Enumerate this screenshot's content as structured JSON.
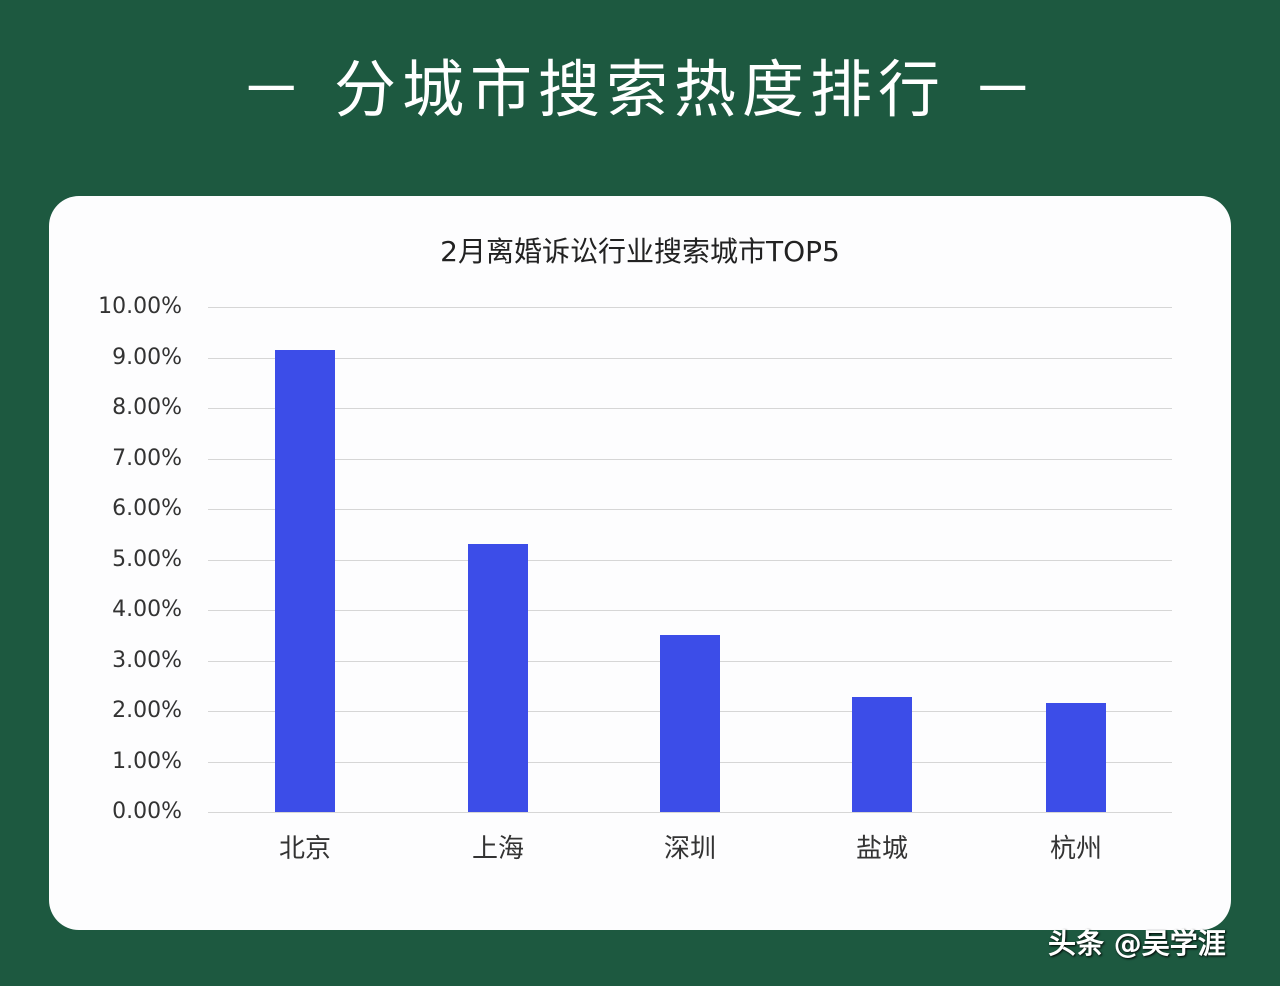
{
  "banner": {
    "title": "－ 分城市搜索热度排行 －"
  },
  "watermark": "头条 @吴学涯",
  "chart_data": {
    "type": "bar",
    "title": "2月离婚诉讼行业搜索城市TOP5",
    "categories": [
      "北京",
      "上海",
      "深圳",
      "盐城",
      "杭州"
    ],
    "values": [
      9.15,
      5.3,
      3.5,
      2.27,
      2.15
    ],
    "value_unit": "%",
    "xlabel": "",
    "ylabel": "",
    "ylim": [
      0,
      10
    ],
    "yticks": [
      "0.00%",
      "1.00%",
      "2.00%",
      "3.00%",
      "4.00%",
      "5.00%",
      "6.00%",
      "7.00%",
      "8.00%",
      "9.00%",
      "10.00%"
    ],
    "grid": true,
    "legend": "none",
    "bar_color": "#3c4de8"
  }
}
